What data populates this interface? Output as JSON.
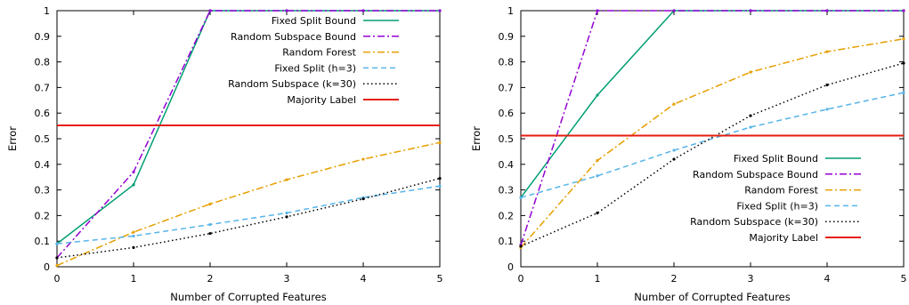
{
  "chart_data": [
    {
      "type": "line",
      "xlabel": "Number of Corrupted Features",
      "ylabel": "Error",
      "xlim": [
        0,
        5
      ],
      "ylim": [
        0,
        1
      ],
      "xticks": [
        "0",
        "1",
        "2",
        "3",
        "4",
        "5"
      ],
      "yticks": [
        "0",
        "0.1",
        "0.2",
        "0.3",
        "0.4",
        "0.5",
        "0.6",
        "0.7",
        "0.8",
        "0.9",
        "1"
      ],
      "legend_position": "top-right",
      "series": [
        {
          "name": "Fixed Split Bound",
          "color": "#009e73",
          "dash": "solid",
          "x": [
            0,
            1,
            2,
            3,
            4,
            5
          ],
          "values": [
            0.09,
            0.32,
            1.0,
            1.0,
            1.0,
            1.0
          ]
        },
        {
          "name": "Random Subspace Bound",
          "color": "#9400d3",
          "dash": "dashdot",
          "x": [
            0,
            1,
            2,
            3,
            4,
            5
          ],
          "values": [
            0.035,
            0.37,
            1.0,
            1.0,
            1.0,
            1.0
          ]
        },
        {
          "name": "Random Forest",
          "color": "#e69f00",
          "dash": "dashdot",
          "x": [
            0,
            1,
            2,
            3,
            4,
            5
          ],
          "values": [
            0.005,
            0.135,
            0.245,
            0.34,
            0.42,
            0.485
          ]
        },
        {
          "name": "Fixed Split (h=3)",
          "color": "#56b4e9",
          "dash": "dash",
          "x": [
            0,
            1,
            2,
            3,
            4,
            5
          ],
          "values": [
            0.09,
            0.12,
            0.165,
            0.21,
            0.27,
            0.315
          ]
        },
        {
          "name": "Random Subspace (k=30)",
          "color": "#000000",
          "dash": "dot",
          "x": [
            0,
            1,
            2,
            3,
            4,
            5
          ],
          "values": [
            0.035,
            0.075,
            0.13,
            0.195,
            0.265,
            0.345
          ]
        },
        {
          "name": "Majority Label",
          "color": "#e51e10",
          "dash": "solid",
          "x": [
            0,
            5
          ],
          "values": [
            0.552,
            0.552
          ]
        }
      ]
    },
    {
      "type": "line",
      "xlabel": "Number of Corrupted Features",
      "ylabel": "Error",
      "xlim": [
        0,
        5
      ],
      "ylim": [
        0,
        1
      ],
      "xticks": [
        "0",
        "1",
        "2",
        "3",
        "4",
        "5"
      ],
      "yticks": [
        "0",
        "0.1",
        "0.2",
        "0.3",
        "0.4",
        "0.5",
        "0.6",
        "0.7",
        "0.8",
        "0.9",
        "1"
      ],
      "legend_position": "bottom-right",
      "series": [
        {
          "name": "Fixed Split Bound",
          "color": "#009e73",
          "dash": "solid",
          "x": [
            0,
            1,
            2,
            3,
            4,
            5
          ],
          "values": [
            0.27,
            0.67,
            1.0,
            1.0,
            1.0,
            1.0
          ]
        },
        {
          "name": "Random Subspace Bound",
          "color": "#9400d3",
          "dash": "dashdot",
          "x": [
            0,
            1,
            2,
            3,
            4,
            5
          ],
          "values": [
            0.085,
            1.0,
            1.0,
            1.0,
            1.0,
            1.0
          ]
        },
        {
          "name": "Random Forest",
          "color": "#e69f00",
          "dash": "dashdot",
          "x": [
            0,
            1,
            2,
            3,
            4,
            5
          ],
          "values": [
            0.075,
            0.415,
            0.635,
            0.76,
            0.84,
            0.89
          ]
        },
        {
          "name": "Fixed Split (h=3)",
          "color": "#56b4e9",
          "dash": "dash",
          "x": [
            0,
            1,
            2,
            3,
            4,
            5
          ],
          "values": [
            0.27,
            0.355,
            0.455,
            0.545,
            0.615,
            0.68
          ]
        },
        {
          "name": "Random Subspace (k=30)",
          "color": "#000000",
          "dash": "dot",
          "x": [
            0,
            1,
            2,
            3,
            4,
            5
          ],
          "values": [
            0.08,
            0.21,
            0.42,
            0.59,
            0.71,
            0.795
          ]
        },
        {
          "name": "Majority Label",
          "color": "#e51e10",
          "dash": "solid",
          "x": [
            0,
            5
          ],
          "values": [
            0.512,
            0.512
          ]
        }
      ]
    }
  ]
}
